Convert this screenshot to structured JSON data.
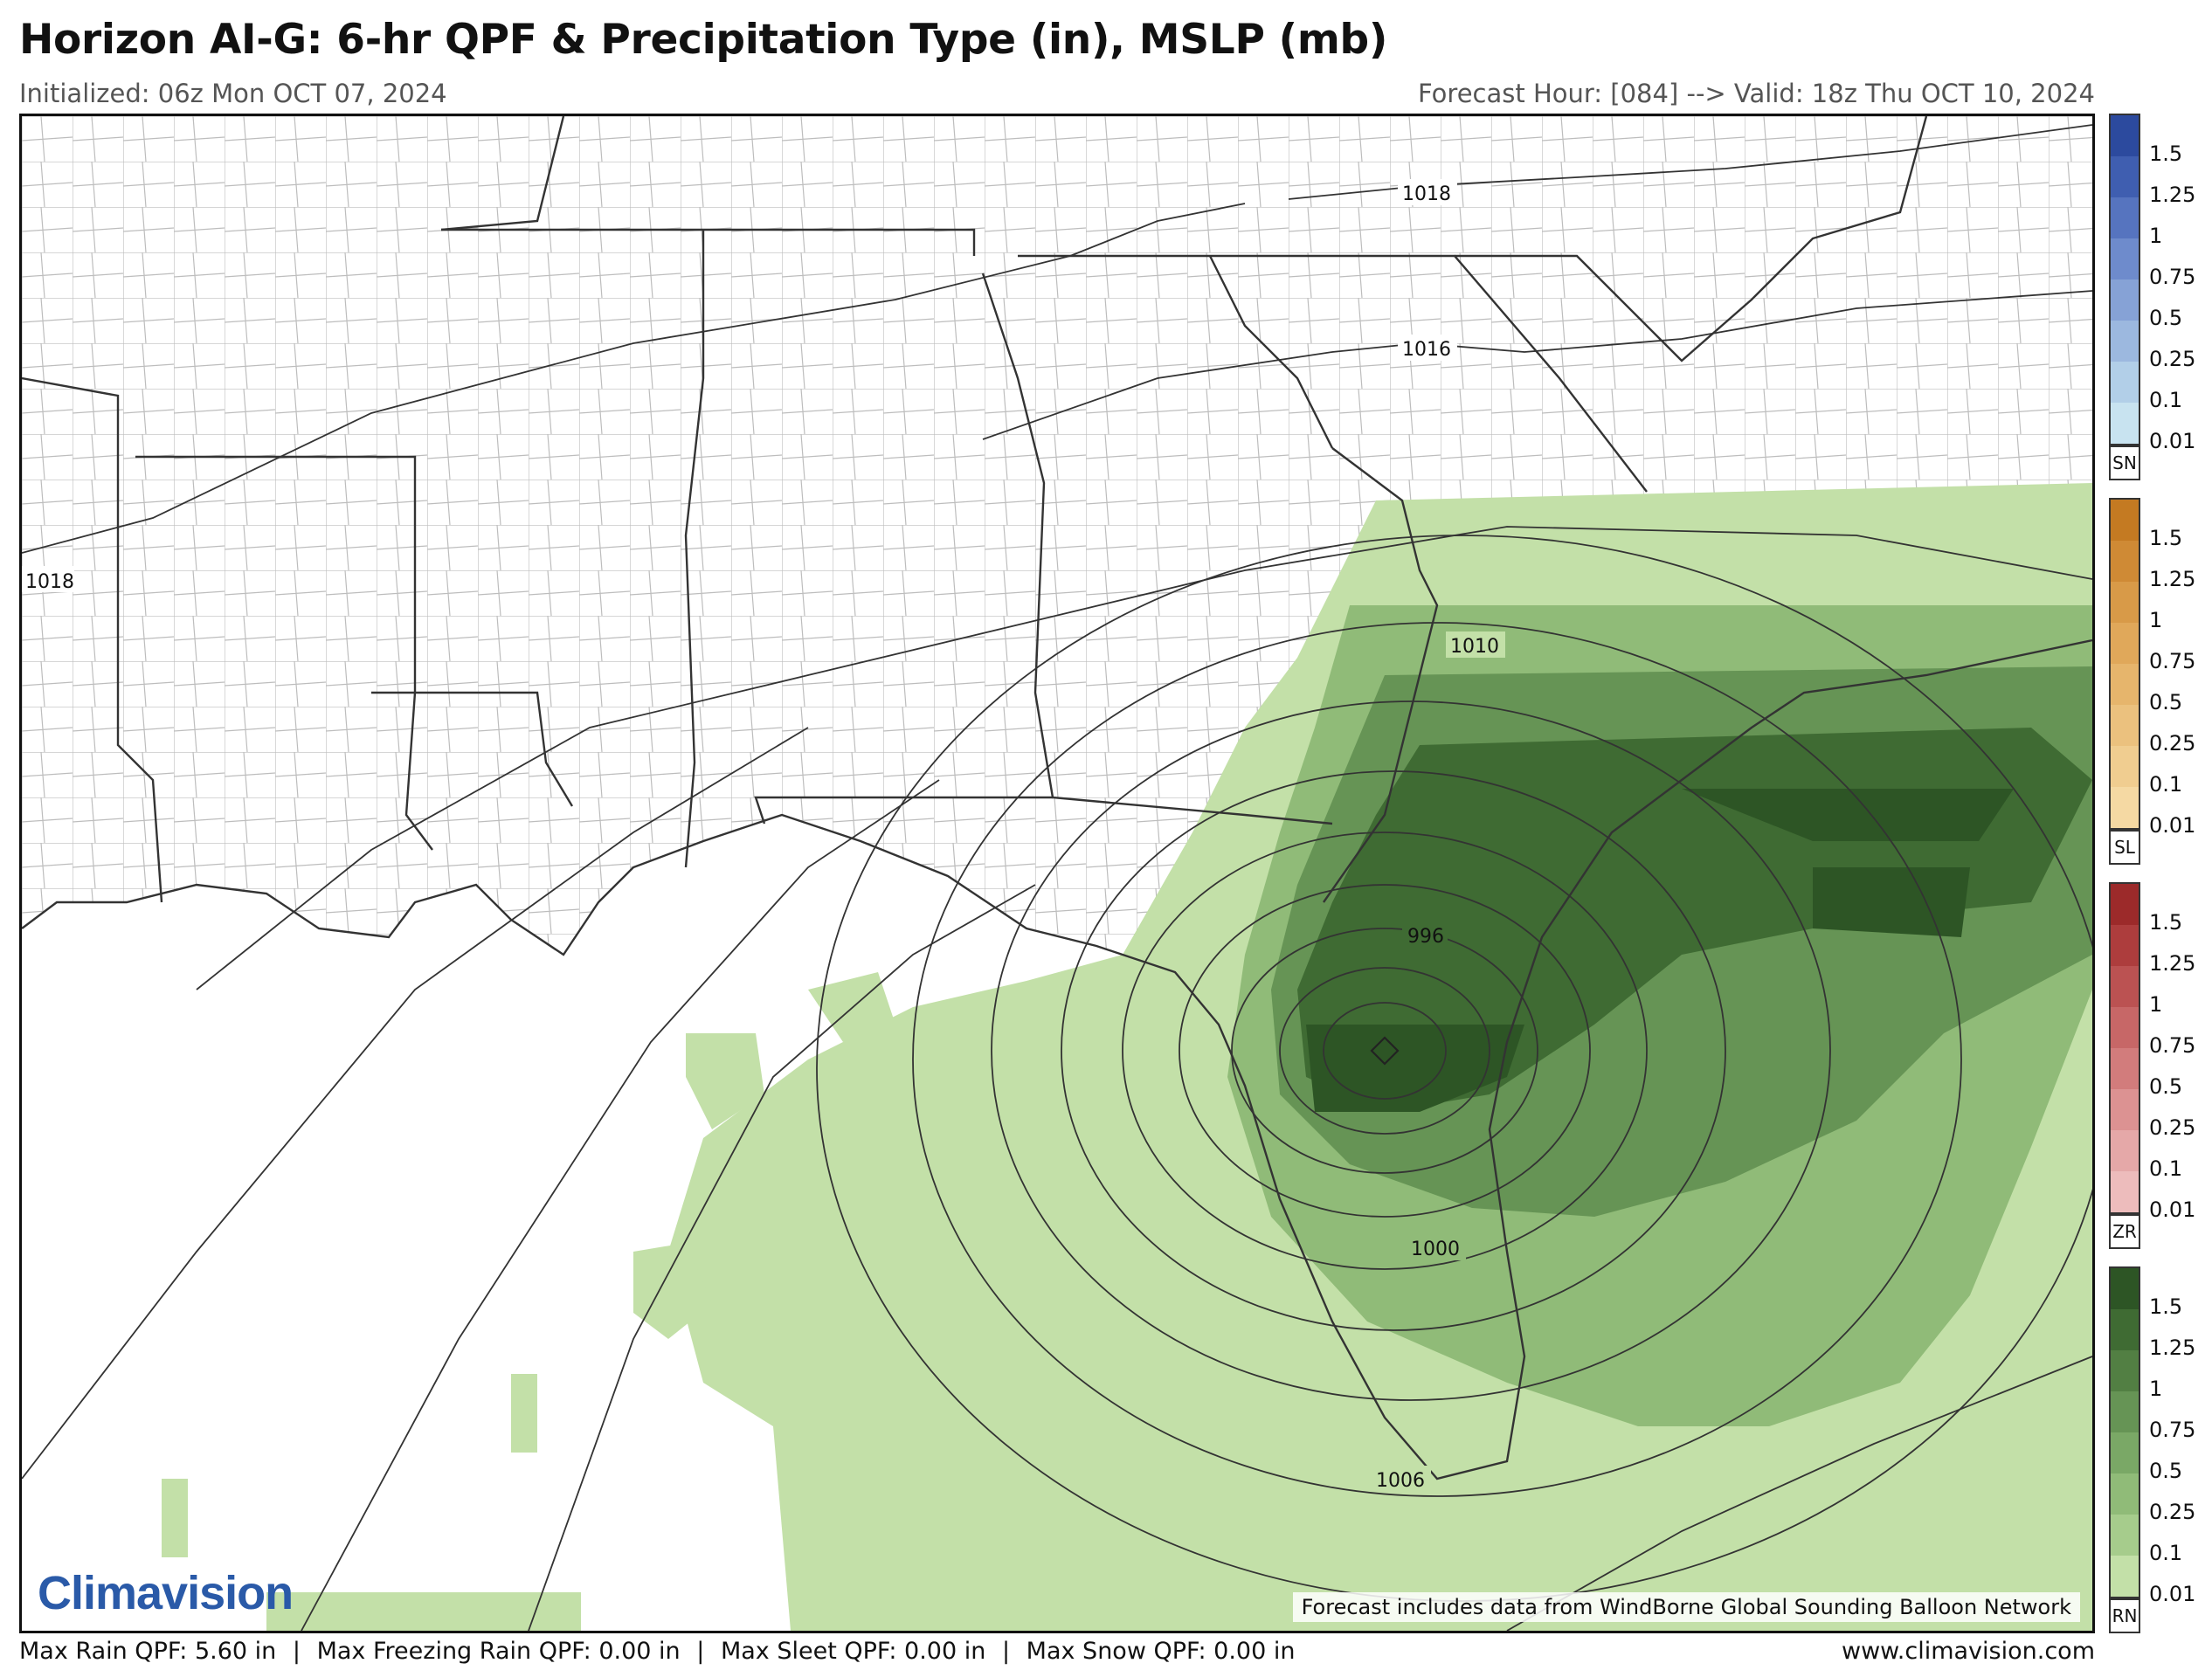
{
  "header": {
    "title": "Horizon AI-G: 6-hr QPF & Precipitation Type (in), MSLP (mb)",
    "initialized": "Initialized: 06z Mon OCT 07, 2024",
    "valid": "Forecast Hour: [084] --> Valid: 18z Thu OCT 10, 2024"
  },
  "map": {
    "isobar_labels": [
      "1018",
      "1016",
      "1018",
      "1010",
      "996",
      "1000",
      "1006"
    ],
    "credit": "Forecast includes data from WindBorne Global Sounding Balloon Network",
    "logo": "Climavision"
  },
  "legends": [
    {
      "tag": "SN",
      "ticks": [
        "1.5",
        "1.25",
        "1",
        "0.75",
        "0.5",
        "0.25",
        "0.1",
        "0.01"
      ],
      "colors": [
        "#2c4a9e",
        "#3f5eb0",
        "#5674bf",
        "#6e8bcc",
        "#86a2d6",
        "#9cb8df",
        "#b2cfe8",
        "#c8e3f0"
      ]
    },
    {
      "tag": "SL",
      "ticks": [
        "1.5",
        "1.25",
        "1",
        "0.75",
        "0.5",
        "0.25",
        "0.1",
        "0.01"
      ],
      "colors": [
        "#c47a22",
        "#cf8a35",
        "#d89a48",
        "#e0a85a",
        "#e6b56c",
        "#ebc17e",
        "#f0cd90",
        "#f5d9a3"
      ]
    },
    {
      "tag": "ZR",
      "ticks": [
        "1.5",
        "1.25",
        "1",
        "0.75",
        "0.5",
        "0.25",
        "0.1",
        "0.01"
      ],
      "colors": [
        "#9c2a2a",
        "#ad3d3d",
        "#bb5252",
        "#c76767",
        "#d27c7c",
        "#dc9292",
        "#e5a8a8",
        "#edbcbc"
      ]
    },
    {
      "tag": "RN",
      "ticks": [
        "1.5",
        "1.25",
        "1",
        "0.75",
        "0.5",
        "0.25",
        "0.1",
        "0.01"
      ],
      "colors": [
        "#2d5525",
        "#3f6b33",
        "#527f43",
        "#669455",
        "#7aa866",
        "#90bb78",
        "#a6cc8c",
        "#c3e0a8"
      ]
    }
  ],
  "footer": {
    "max_rain": "Max Rain QPF: 5.60 in",
    "max_fzra": "Max Freezing Rain QPF: 0.00 in",
    "max_sleet": "Max Sleet QPF: 0.00 in",
    "max_snow": "Max Snow QPF: 0.00 in",
    "separator": "|",
    "website": "www.climavision.com"
  }
}
